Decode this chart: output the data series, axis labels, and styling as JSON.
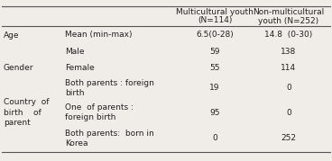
{
  "col_headers": [
    [
      "Multicultural youth",
      "(N=114)"
    ],
    [
      "Non-multicultural",
      "youth (N=252)"
    ]
  ],
  "rows": [
    {
      "cat": "Age",
      "cat_row": 0,
      "sub": "Mean (min-max)",
      "val1": "6.5(0-28)",
      "val2": "14.8  (0-30)"
    },
    {
      "cat": "",
      "cat_row": 1,
      "sub": "Male",
      "val1": "59",
      "val2": "138"
    },
    {
      "cat": "Gender",
      "cat_row": 2,
      "sub": "Female",
      "val1": "55",
      "val2": "114"
    },
    {
      "cat": "",
      "cat_row": 3,
      "sub": "Both parents : foreign\nbirth",
      "val1": "19",
      "val2": "0"
    },
    {
      "cat": "Country  of\nbirth    of\nparent",
      "cat_row": 4,
      "sub": "One  of parents :\nforeign birth",
      "val1": "95",
      "val2": "0"
    },
    {
      "cat": "",
      "cat_row": 5,
      "sub": "Both parents:  born in\nKorea",
      "val1": "0",
      "val2": "252"
    }
  ],
  "bg_color": "#f0ede8",
  "line_color": "#555555",
  "text_color": "#222222",
  "font_size": 6.5,
  "header_font_size": 6.5
}
